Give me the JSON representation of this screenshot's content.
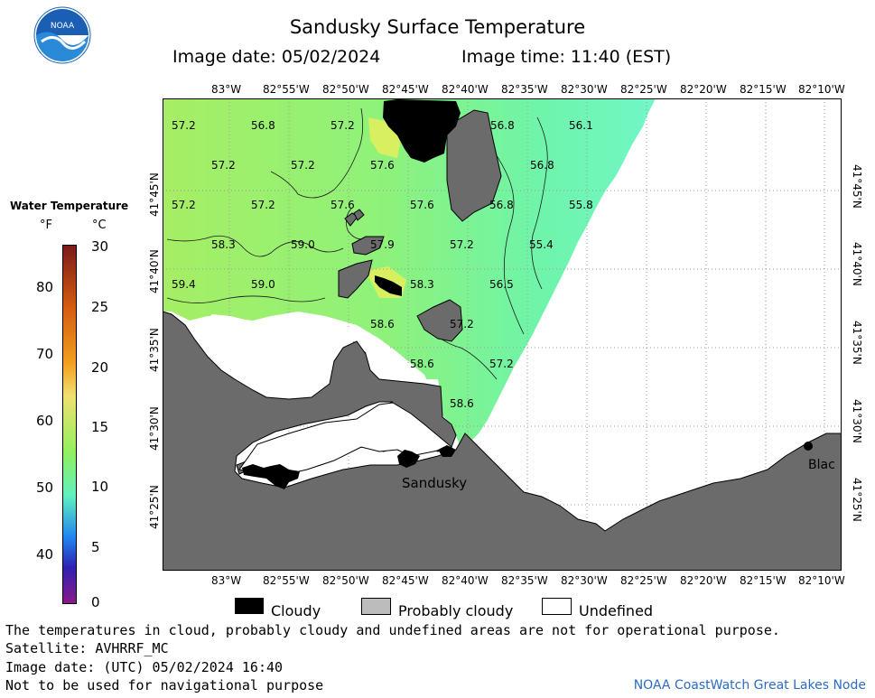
{
  "header": {
    "title": "Sandusky Surface Temperature",
    "image_date": "Image date: 05/02/2024",
    "image_time": "Image time: 11:40 (EST)",
    "logo_text": "NOAA"
  },
  "axes": {
    "lon_labels": [
      "83°W",
      "82°55'W",
      "82°50'W",
      "82°45'W",
      "82°40'W",
      "82°35'W",
      "82°30'W",
      "82°25'W",
      "82°20'W",
      "82°15'W",
      "82°10'W"
    ],
    "lat_labels": [
      "41°45'N",
      "41°40'N",
      "41°35'N",
      "41°30'N",
      "41°25'N"
    ]
  },
  "legend": {
    "title": "Water Temperature",
    "unit_f": "°F",
    "unit_c": "°C",
    "fahrenheit_ticks": [
      "80",
      "70",
      "60",
      "50",
      "40"
    ],
    "celsius_ticks": [
      "30",
      "25",
      "20",
      "15",
      "10",
      "5",
      "0"
    ],
    "color_stops": [
      "#7b1a1a",
      "#d45a10",
      "#f2a020",
      "#f0e070",
      "#90f060",
      "#60f0c0",
      "#2080f0",
      "#3020b0",
      "#8a1a8a"
    ]
  },
  "map": {
    "temperature_labels": [
      "57.2",
      "56.8",
      "57.2",
      "56.8",
      "56.1",
      "57.2",
      "57.2",
      "57.6",
      "56.8",
      "57.2",
      "57.2",
      "57.6",
      "57.6",
      "56.8",
      "55.8",
      "58.3",
      "59.0",
      "57.9",
      "57.2",
      "55.4",
      "59.4",
      "59.0",
      "58.3",
      "56.5",
      "58.6",
      "57.2",
      "58.6",
      "57.2",
      "58.6"
    ],
    "place_labels": [
      "Sandusky",
      "Blac"
    ],
    "colors": {
      "land": "#6b6b6b",
      "cloud": "#000000",
      "water_warm": "#a6ee64",
      "water_cool": "#70f7bf",
      "undefined": "#ffffff"
    }
  },
  "key": {
    "cloudy": "Cloudy",
    "probably_cloudy": "Probably cloudy",
    "undefined": "Undefined"
  },
  "footer": {
    "disclaimer": "The temperatures in cloud, probably cloudy and undefined areas are not for operational purpose.",
    "satellite": "Satellite: AVHRRF_MC",
    "utc_date": "Image date: (UTC) 05/02/2024  16:40",
    "nav_warning": "Not to be used for navigational purpose",
    "credit": "NOAA CoastWatch Great Lakes Node"
  }
}
